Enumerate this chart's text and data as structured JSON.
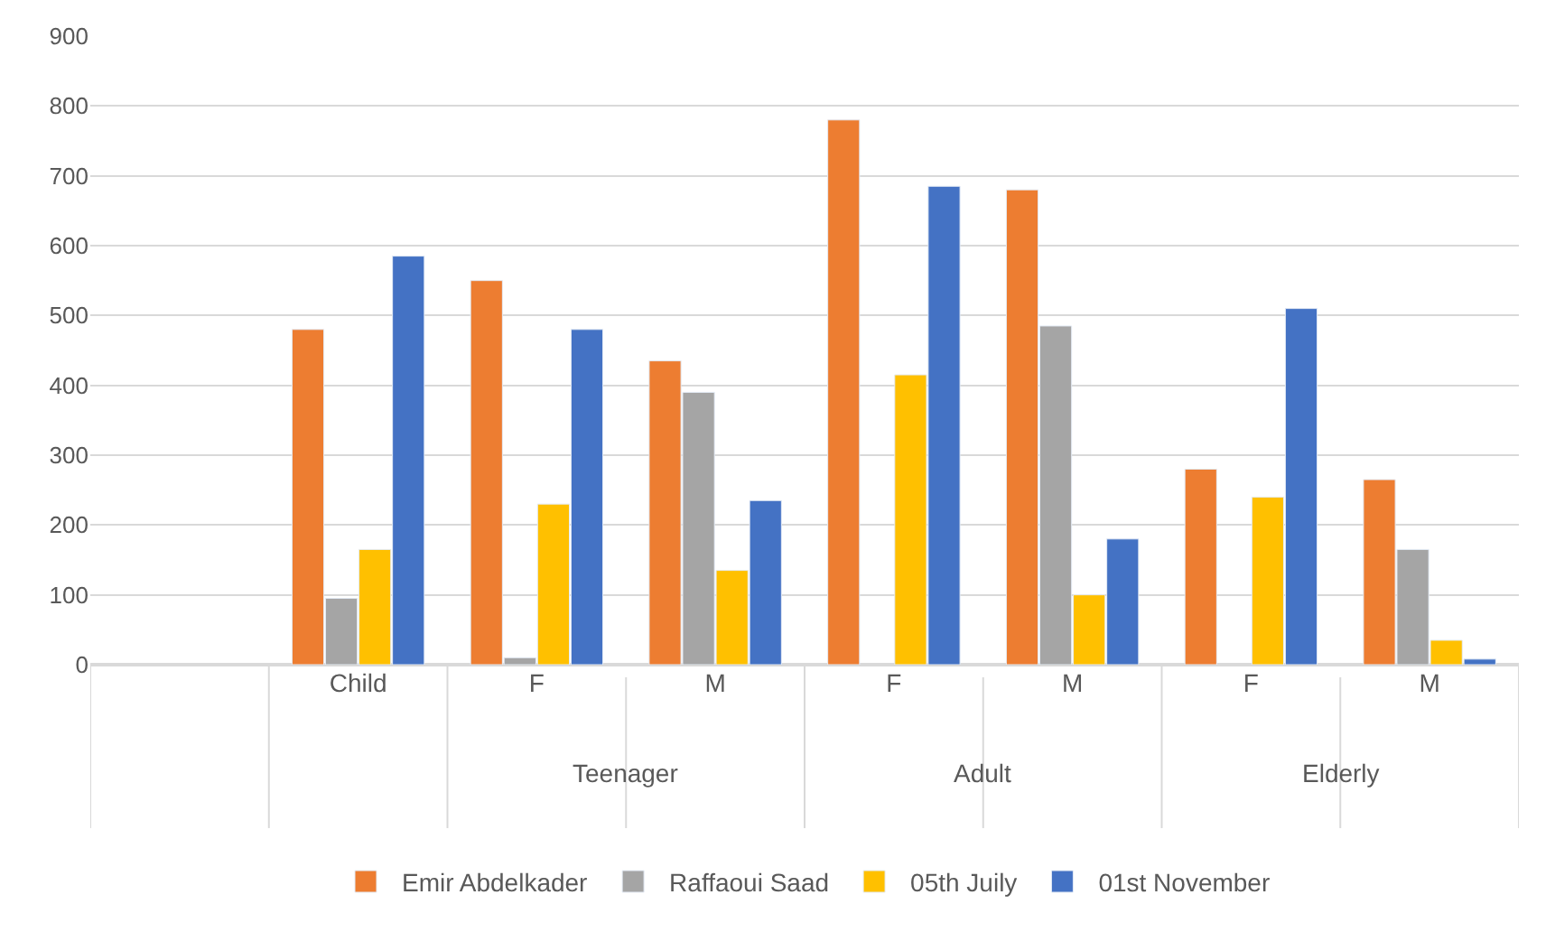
{
  "chart_data": {
    "type": "bar",
    "categories": [
      null,
      "Child",
      "F",
      "M",
      "F",
      "M",
      "F",
      "M"
    ],
    "series": [
      {
        "name": "Emir Abdelkader",
        "color": "#ed7d31",
        "values": [
          null,
          480,
          550,
          435,
          780,
          680,
          280,
          265
        ]
      },
      {
        "name": "Raffaoui Saad",
        "color": "#a5a5a5",
        "values": [
          null,
          95,
          10,
          390,
          null,
          485,
          null,
          165
        ]
      },
      {
        "name": "05th Juily",
        "color": "#ffc000",
        "values": [
          null,
          165,
          230,
          135,
          415,
          100,
          240,
          35
        ]
      },
      {
        "name": "01st November",
        "color": "#4472c4",
        "values": [
          null,
          585,
          480,
          235,
          685,
          180,
          510,
          8
        ]
      }
    ],
    "annotations": [
      "Teenager",
      "Adult",
      "Elderly"
    ],
    "ylim": [
      0,
      900
    ],
    "yticks": [
      0,
      100,
      200,
      300,
      400,
      500,
      600,
      700,
      800,
      900
    ],
    "grid": "y",
    "legend": "bottom"
  }
}
